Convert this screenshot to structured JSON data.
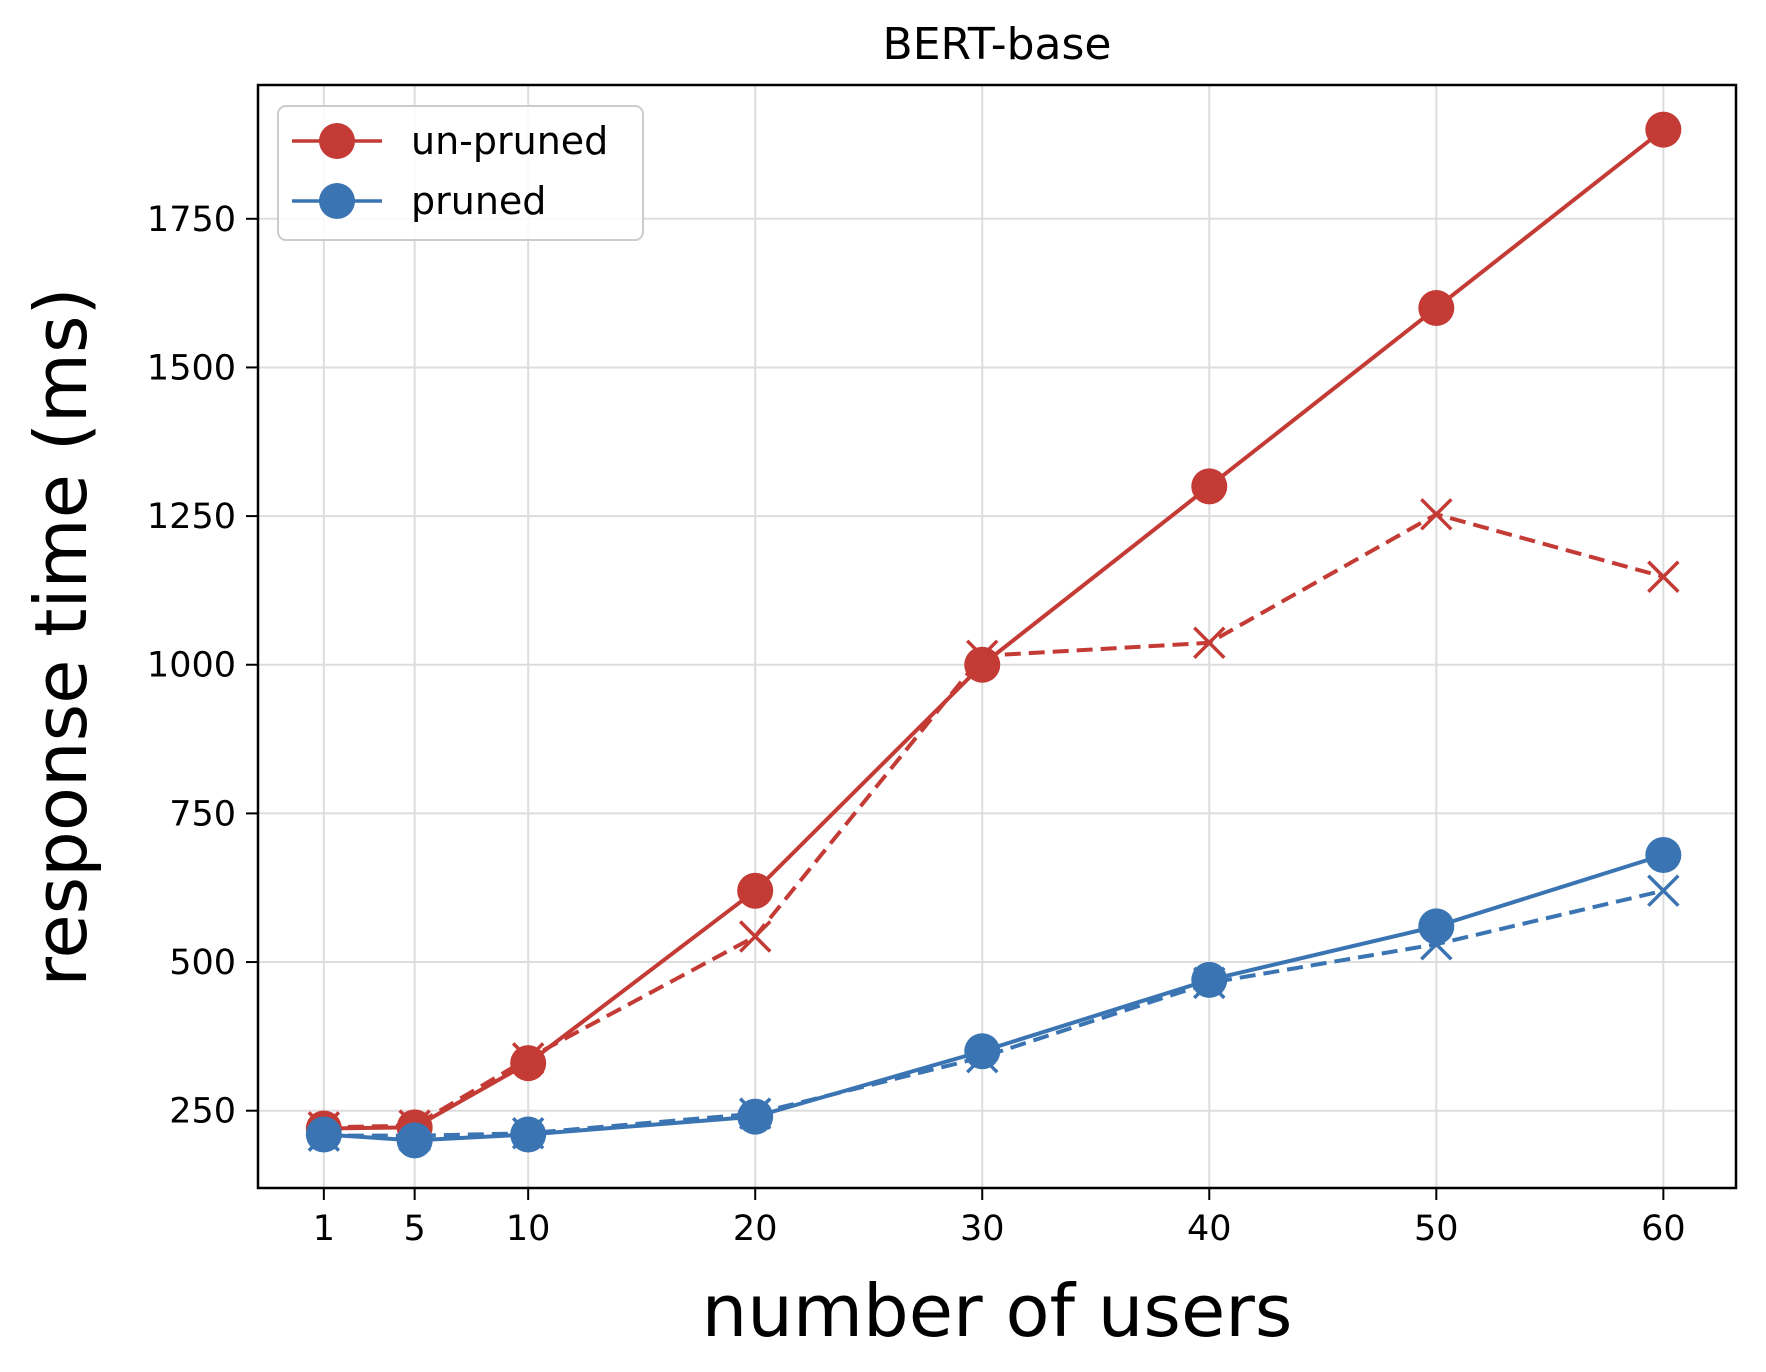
{
  "chart_data": {
    "type": "line",
    "title": "BERT-base",
    "xlabel": "number of users",
    "ylabel": "response time (ms)",
    "x": [
      1,
      5,
      10,
      20,
      30,
      40,
      50,
      60
    ],
    "xticks": [
      1,
      5,
      10,
      20,
      30,
      40,
      50,
      60
    ],
    "yticks": [
      250,
      500,
      750,
      1000,
      1250,
      1500,
      1750
    ],
    "xlim": [
      -1.9,
      63.2
    ],
    "ylim": [
      120,
      1975
    ],
    "grid": true,
    "legend_position": "top-left",
    "legend": [
      "un-pruned",
      "pruned"
    ],
    "series": [
      {
        "name": "un-pruned",
        "color": "#c43b35",
        "style": "solid",
        "marker": "circle",
        "values": [
          220,
          222,
          330,
          620,
          1000,
          1300,
          1600,
          1900
        ]
      },
      {
        "color": "#c43b35",
        "style": "dashed",
        "marker": "x",
        "values": [
          222,
          225,
          338,
          543,
          1015,
          1037,
          1253,
          1148
        ]
      },
      {
        "name": "pruned",
        "color": "#3a74b2",
        "style": "solid",
        "marker": "circle",
        "values": [
          210,
          200,
          210,
          240,
          350,
          470,
          560,
          680
        ]
      },
      {
        "color": "#3a74b2",
        "style": "dashed",
        "marker": "x",
        "values": [
          208,
          208,
          212,
          245,
          340,
          465,
          530,
          620
        ]
      }
    ]
  }
}
